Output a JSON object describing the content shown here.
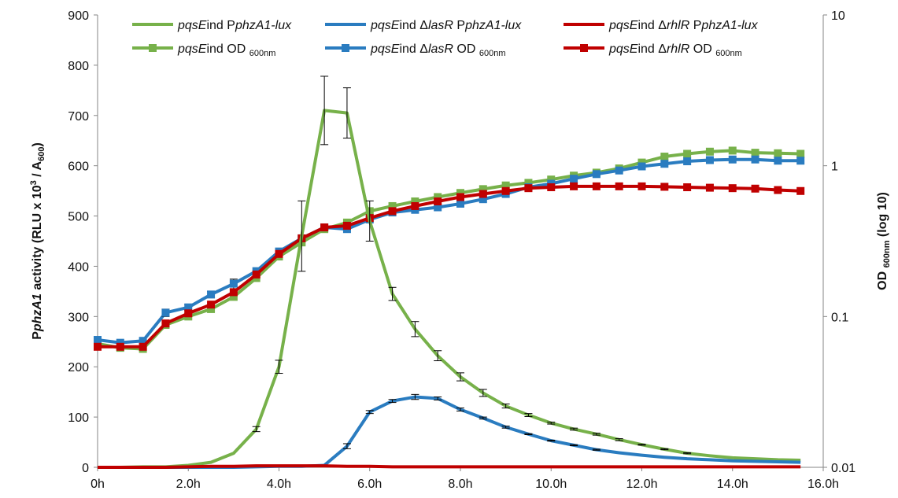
{
  "chart_data": {
    "type": "line",
    "title": "",
    "x_ticks": [
      "0h",
      "2.0h",
      "4.0h",
      "6.0h",
      "8.0h",
      "10.0h",
      "12.0h",
      "14.0h",
      "16.0h"
    ],
    "x_range": [
      0,
      16
    ],
    "y_left": {
      "label_parts": [
        {
          "text": "P",
          "style": "normal"
        },
        {
          "text": "phzA1",
          "style": "italic"
        },
        {
          "text": " activity (RLU x 10",
          "style": "normal"
        },
        {
          "text": "3",
          "style": "sup"
        },
        {
          "text": " / A",
          "style": "normal"
        },
        {
          "text": "600",
          "style": "sub"
        },
        {
          "text": ")",
          "style": "normal"
        }
      ],
      "range": [
        0,
        900
      ],
      "ticks": [
        "0",
        "100",
        "200",
        "300",
        "400",
        "500",
        "600",
        "700",
        "800",
        "900"
      ]
    },
    "y_right": {
      "label_parts": [
        {
          "text": "OD ",
          "style": "normal"
        },
        {
          "text": "600nm",
          "style": "sub"
        },
        {
          "text": " (log 10)",
          "style": "normal"
        }
      ],
      "scale": "log",
      "range": [
        0.01,
        10
      ],
      "ticks": [
        "0.01",
        "0.1",
        "1",
        "10"
      ]
    },
    "x": [
      0,
      0.5,
      1,
      1.5,
      2,
      2.5,
      3,
      3.5,
      4,
      4.5,
      5,
      5.5,
      6,
      6.5,
      7,
      7.5,
      8,
      8.5,
      9,
      9.5,
      10,
      10.5,
      11,
      11.5,
      12,
      12.5,
      13,
      13.5,
      14,
      14.5,
      15,
      15.5
    ],
    "legend_position": "top",
    "series": [
      {
        "legend_parts": [
          {
            "text": "pqsE",
            "style": "italic"
          },
          {
            "text": "ind P",
            "style": "normal"
          },
          {
            "text": "phzA1-lux",
            "style": "italic"
          }
        ],
        "color": "#77b14a",
        "marker": "none",
        "axis": "left",
        "values": [
          0,
          0,
          1,
          1,
          4,
          10,
          28,
          76,
          200,
          460,
          710,
          705,
          490,
          345,
          275,
          222,
          180,
          148,
          122,
          104,
          88,
          76,
          66,
          55,
          45,
          36,
          28,
          23,
          19,
          17,
          15,
          14
        ],
        "errors": [
          0,
          0,
          0,
          0,
          0,
          0,
          0,
          5,
          13,
          70,
          68,
          50,
          40,
          13,
          15,
          10,
          8,
          7,
          4,
          3,
          2,
          2,
          2,
          2,
          1,
          1,
          1,
          0,
          0,
          0,
          0,
          0
        ]
      },
      {
        "legend_parts": [
          {
            "text": "pqsE",
            "style": "italic"
          },
          {
            "text": "ind Δ",
            "style": "normal"
          },
          {
            "text": "lasR",
            "style": "italic"
          },
          {
            "text": " P",
            "style": "normal"
          },
          {
            "text": "phzA1-lux",
            "style": "italic"
          }
        ],
        "color": "#2a7cc0",
        "marker": "none",
        "axis": "left",
        "values": [
          0,
          0,
          0,
          0,
          0,
          0,
          0,
          1,
          2,
          2,
          4,
          42,
          110,
          132,
          140,
          137,
          115,
          98,
          80,
          66,
          53,
          44,
          35,
          29,
          24,
          20,
          17,
          15,
          13,
          12,
          11,
          10
        ],
        "errors": [
          0,
          0,
          0,
          0,
          0,
          0,
          0,
          0,
          0,
          0,
          0,
          5,
          3,
          3,
          5,
          3,
          3,
          2,
          2,
          1,
          1,
          1,
          1,
          0,
          0,
          0,
          0,
          0,
          0,
          0,
          0,
          0
        ]
      },
      {
        "legend_parts": [
          {
            "text": "pqsE",
            "style": "italic"
          },
          {
            "text": "ind  Δ",
            "style": "normal"
          },
          {
            "text": "rhlR",
            "style": "italic"
          },
          {
            "text": " P",
            "style": "normal"
          },
          {
            "text": "phzA1-lux",
            "style": "italic"
          }
        ],
        "color": "#c00000",
        "marker": "none",
        "axis": "left",
        "values": [
          0,
          0,
          0,
          0,
          1,
          2,
          2,
          3,
          3,
          3,
          3,
          2,
          2,
          1,
          1,
          1,
          1,
          1,
          1,
          1,
          1,
          1,
          1,
          1,
          1,
          1,
          1,
          1,
          1,
          1,
          1,
          1
        ],
        "errors": []
      },
      {
        "legend_parts": [
          {
            "text": "pqsE",
            "style": "italic"
          },
          {
            "text": "ind OD ",
            "style": "normal"
          },
          {
            "text": "600nm",
            "style": "sub"
          }
        ],
        "color": "#77b14a",
        "marker": "square",
        "axis": "right",
        "values": [
          0.066,
          0.062,
          0.061,
          0.088,
          0.1,
          0.112,
          0.135,
          0.18,
          0.25,
          0.31,
          0.38,
          0.42,
          0.5,
          0.54,
          0.58,
          0.62,
          0.66,
          0.7,
          0.74,
          0.77,
          0.81,
          0.86,
          0.9,
          0.96,
          1.05,
          1.15,
          1.2,
          1.24,
          1.26,
          1.22,
          1.21,
          1.2
        ],
        "errors": []
      },
      {
        "legend_parts": [
          {
            "text": "pqsE",
            "style": "italic"
          },
          {
            "text": "ind Δ",
            "style": "normal"
          },
          {
            "text": "lasR",
            "style": "italic"
          },
          {
            "text": " OD ",
            "style": "normal"
          },
          {
            "text": "600nm",
            "style": "sub"
          }
        ],
        "color": "#2a7cc0",
        "marker": "square",
        "axis": "right",
        "values": [
          0.07,
          0.067,
          0.069,
          0.106,
          0.115,
          0.14,
          0.165,
          0.2,
          0.27,
          0.33,
          0.39,
          0.38,
          0.44,
          0.49,
          0.51,
          0.53,
          0.56,
          0.6,
          0.65,
          0.72,
          0.76,
          0.82,
          0.88,
          0.93,
          0.99,
          1.03,
          1.07,
          1.09,
          1.1,
          1.1,
          1.08,
          1.08
        ],
        "errors": [
          0,
          0,
          0,
          0.006,
          0.005,
          0.007,
          0.012,
          0,
          0,
          0,
          0,
          0,
          0,
          0,
          0,
          0,
          0,
          0,
          0,
          0,
          0,
          0,
          0,
          0,
          0,
          0,
          0,
          0,
          0,
          0,
          0,
          0
        ]
      },
      {
        "legend_parts": [
          {
            "text": "pqsE",
            "style": "italic"
          },
          {
            "text": "ind Δ",
            "style": "normal"
          },
          {
            "text": "rhlR",
            "style": "italic"
          },
          {
            "text": " OD ",
            "style": "normal"
          },
          {
            "text": "600nm",
            "style": "sub"
          }
        ],
        "color": "#c00000",
        "marker": "square",
        "axis": "right",
        "values": [
          0.063,
          0.063,
          0.063,
          0.09,
          0.105,
          0.12,
          0.145,
          0.19,
          0.26,
          0.33,
          0.39,
          0.4,
          0.45,
          0.5,
          0.54,
          0.58,
          0.62,
          0.65,
          0.68,
          0.71,
          0.72,
          0.73,
          0.73,
          0.73,
          0.73,
          0.725,
          0.72,
          0.715,
          0.71,
          0.705,
          0.69,
          0.68
        ],
        "errors": []
      }
    ]
  }
}
